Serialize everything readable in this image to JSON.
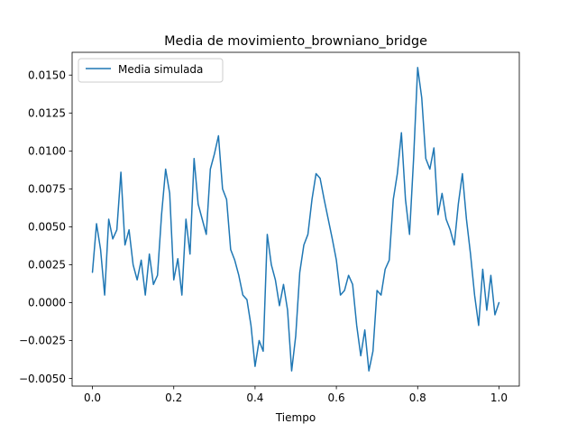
{
  "chart_data": {
    "type": "line",
    "title": "Media de movimiento_browniano_bridge",
    "xlabel": "Tiempo",
    "ylabel": "",
    "xlim": [
      -0.05,
      1.05
    ],
    "ylim": [
      -0.0055,
      0.0165
    ],
    "xticks": [
      0.0,
      0.2,
      0.4,
      0.6,
      0.8,
      1.0
    ],
    "xtick_labels": [
      "0.0",
      "0.2",
      "0.4",
      "0.6",
      "0.8",
      "1.0"
    ],
    "yticks": [
      -0.005,
      -0.0025,
      0.0,
      0.0025,
      0.005,
      0.0075,
      0.01,
      0.0125,
      0.015
    ],
    "ytick_labels": [
      "−0.0050",
      "−0.0025",
      "0.0000",
      "0.0025",
      "0.0050",
      "0.0075",
      "0.0100",
      "0.0125",
      "0.0150"
    ],
    "grid": false,
    "legend_position": "upper-left",
    "series": [
      {
        "name": "Media simulada",
        "color": "#1f77b4",
        "x": [
          0.0,
          0.01,
          0.02,
          0.03,
          0.04,
          0.05,
          0.06,
          0.07,
          0.08,
          0.09,
          0.1,
          0.11,
          0.12,
          0.13,
          0.14,
          0.15,
          0.16,
          0.17,
          0.18,
          0.19,
          0.2,
          0.21,
          0.22,
          0.23,
          0.24,
          0.25,
          0.26,
          0.27,
          0.28,
          0.29,
          0.3,
          0.31,
          0.32,
          0.33,
          0.34,
          0.35,
          0.36,
          0.37,
          0.38,
          0.39,
          0.4,
          0.41,
          0.42,
          0.43,
          0.44,
          0.45,
          0.46,
          0.47,
          0.48,
          0.49,
          0.5,
          0.51,
          0.52,
          0.53,
          0.54,
          0.55,
          0.56,
          0.57,
          0.58,
          0.59,
          0.6,
          0.61,
          0.62,
          0.63,
          0.64,
          0.65,
          0.66,
          0.67,
          0.68,
          0.69,
          0.7,
          0.71,
          0.72,
          0.73,
          0.74,
          0.75,
          0.76,
          0.77,
          0.78,
          0.79,
          0.8,
          0.81,
          0.82,
          0.83,
          0.84,
          0.85,
          0.86,
          0.87,
          0.88,
          0.89,
          0.9,
          0.91,
          0.92,
          0.93,
          0.94,
          0.95,
          0.96,
          0.97,
          0.98,
          0.99,
          1.0
        ],
        "y": [
          0.002,
          0.0052,
          0.0035,
          0.0005,
          0.0055,
          0.0042,
          0.0048,
          0.0086,
          0.0038,
          0.0048,
          0.0025,
          0.0015,
          0.0028,
          0.0005,
          0.0032,
          0.0012,
          0.0018,
          0.0058,
          0.0088,
          0.0072,
          0.0015,
          0.0029,
          0.0005,
          0.0055,
          0.0032,
          0.0095,
          0.0065,
          0.0055,
          0.0045,
          0.0088,
          0.0098,
          0.011,
          0.0075,
          0.0068,
          0.0035,
          0.0028,
          0.0018,
          0.0005,
          0.0002,
          -0.0015,
          -0.0042,
          -0.0025,
          -0.0032,
          0.0045,
          0.0025,
          0.0015,
          -0.0002,
          0.0012,
          -0.0005,
          -0.0045,
          -0.0022,
          0.002,
          0.0038,
          0.0045,
          0.0068,
          0.0085,
          0.0082,
          0.0068,
          0.0055,
          0.0042,
          0.0028,
          0.0005,
          0.0008,
          0.0018,
          0.0012,
          -0.0015,
          -0.0035,
          -0.0018,
          -0.0045,
          -0.0032,
          0.0008,
          0.0005,
          0.0022,
          0.0028,
          0.0068,
          0.0085,
          0.0112,
          0.0068,
          0.0045,
          0.0095,
          0.0155,
          0.0135,
          0.0095,
          0.0088,
          0.0102,
          0.0058,
          0.0072,
          0.0055,
          0.0048,
          0.0038,
          0.0065,
          0.0085,
          0.0055,
          0.0032,
          0.0005,
          -0.0015,
          0.0022,
          -0.0005,
          0.0018,
          -0.0008,
          0.0
        ]
      }
    ]
  }
}
